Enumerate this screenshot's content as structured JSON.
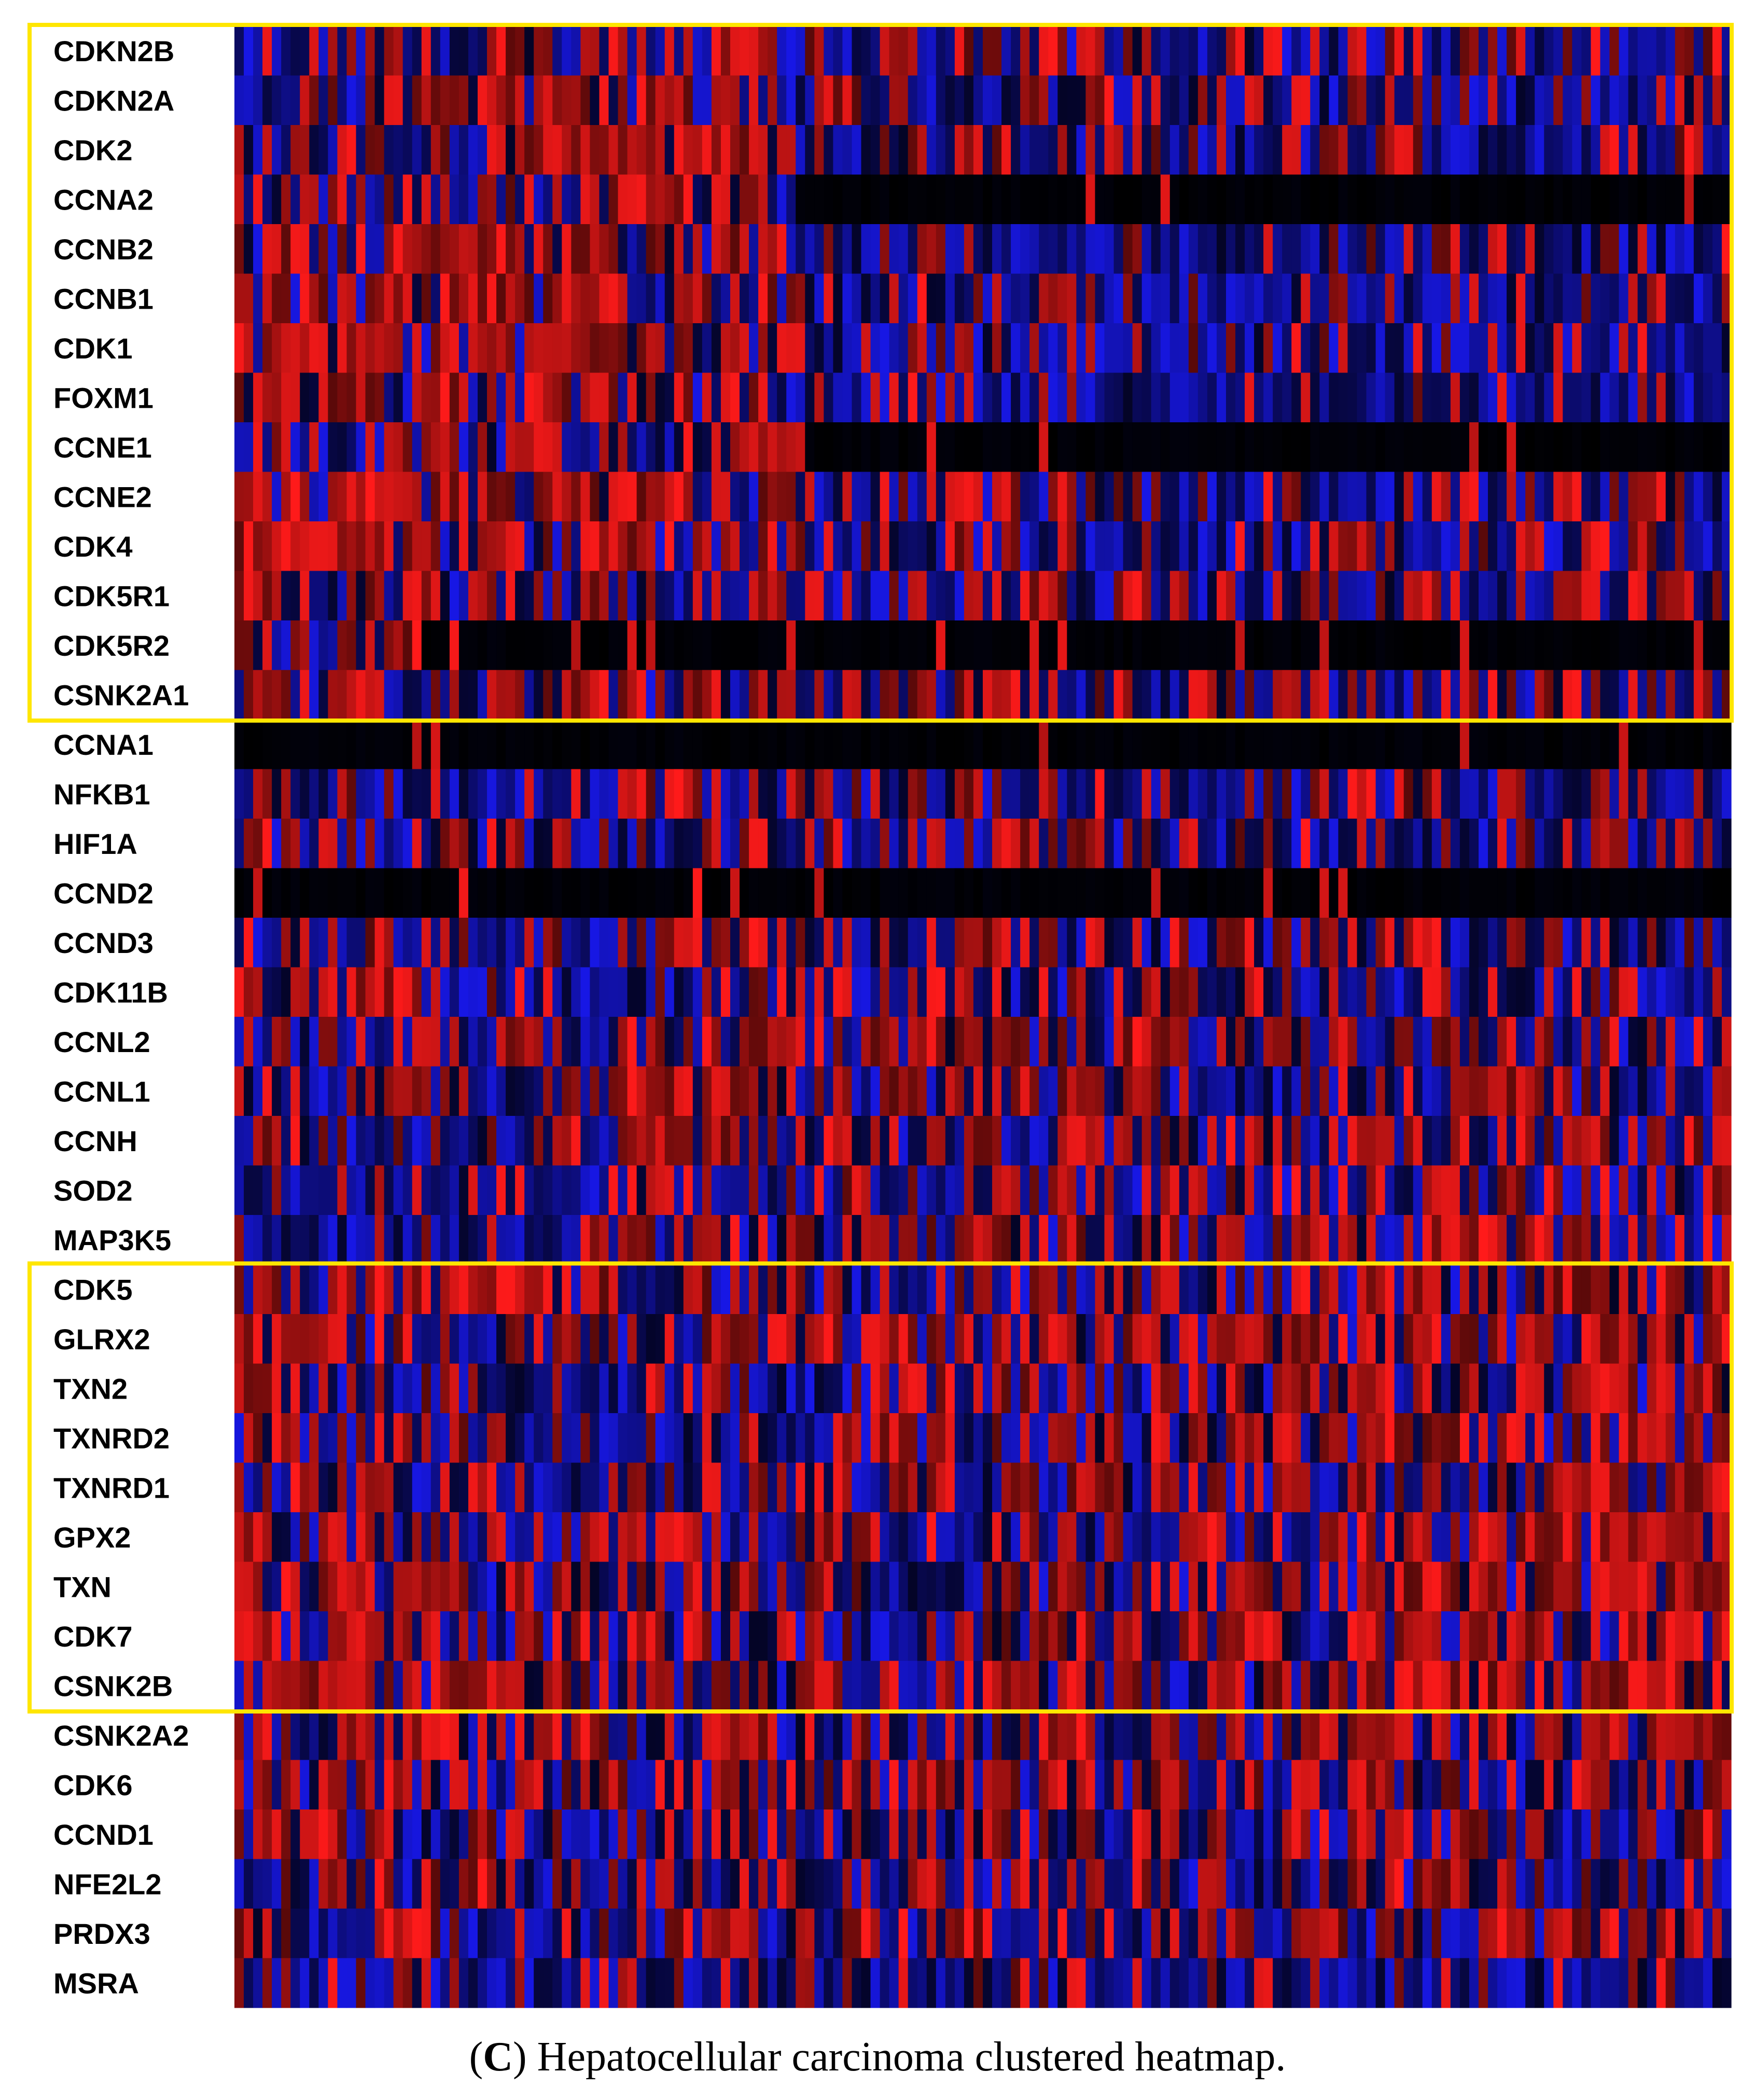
{
  "chart_data": {
    "type": "heatmap",
    "title": "",
    "caption_letter": "C",
    "caption_text": "Hepatocellular carcinoma clustered heatmap.",
    "caption_open": "(",
    "caption_close": ")",
    "row_labels": [
      "CDKN2B",
      "CDKN2A",
      "CDK2",
      "CCNA2",
      "CCNB2",
      "CCNB1",
      "CDK1",
      "FOXM1",
      "CCNE1",
      "CCNE2",
      "CDK4",
      "CDK5R1",
      "CDK5R2",
      "CSNK2A1",
      "CCNA1",
      "NFKB1",
      "HIF1A",
      "CCND2",
      "CCND3",
      "CDK11B",
      "CCNL2",
      "CCNL1",
      "CCNH",
      "SOD2",
      "MAP3K5",
      "CDK5",
      "GLRX2",
      "TXN2",
      "TXNRD2",
      "TXNRD1",
      "GPX2",
      "TXN",
      "CDK7",
      "CSNK2B",
      "CSNK2A2",
      "CDK6",
      "CCND1",
      "NFE2L2",
      "PRDX3",
      "MSRA"
    ],
    "highlighted_clusters": [
      {
        "first_row": "CDKN2B",
        "last_row": "CSNK2A1"
      },
      {
        "first_row": "CDK5",
        "last_row": "CSNK2B"
      }
    ],
    "row_profiles": [
      [
        0.45,
        0.5,
        0.5,
        0.45,
        0.4,
        0.4,
        0.35,
        0.35
      ],
      [
        0.55,
        0.75,
        0.55,
        0.4,
        0.4,
        0.35,
        0.35,
        0.4
      ],
      [
        0.65,
        0.75,
        0.75,
        0.4,
        0.35,
        0.3,
        0.3,
        0.3
      ],
      [
        0.55,
        0.55,
        0.6,
        0.0,
        0.0,
        0.0,
        0.0,
        0.0
      ],
      [
        0.8,
        0.85,
        0.75,
        0.3,
        0.25,
        0.2,
        0.25,
        0.25
      ],
      [
        0.8,
        0.8,
        0.65,
        0.3,
        0.25,
        0.2,
        0.25,
        0.25
      ],
      [
        0.85,
        0.8,
        0.65,
        0.3,
        0.2,
        0.2,
        0.2,
        0.2
      ],
      [
        0.8,
        0.75,
        0.65,
        0.3,
        0.25,
        0.2,
        0.25,
        0.25
      ],
      [
        0.4,
        0.55,
        0.5,
        0.0,
        0.0,
        0.0,
        0.0,
        0.0
      ],
      [
        0.7,
        0.75,
        0.75,
        0.3,
        0.25,
        0.25,
        0.25,
        0.25
      ],
      [
        0.8,
        0.65,
        0.55,
        0.35,
        0.3,
        0.3,
        0.3,
        0.35
      ],
      [
        0.65,
        0.6,
        0.55,
        0.4,
        0.35,
        0.35,
        0.35,
        0.35
      ],
      [
        0.55,
        0.0,
        0.0,
        0.0,
        0.0,
        0.0,
        0.0,
        0.0
      ],
      [
        0.75,
        0.75,
        0.65,
        0.45,
        0.45,
        0.4,
        0.35,
        0.35
      ],
      [
        0.0,
        0.0,
        0.0,
        0.0,
        0.0,
        0.0,
        0.0,
        0.0
      ],
      [
        0.3,
        0.3,
        0.5,
        0.5,
        0.4,
        0.35,
        0.3,
        0.3
      ],
      [
        0.35,
        0.4,
        0.55,
        0.5,
        0.4,
        0.35,
        0.4,
        0.4
      ],
      [
        0.0,
        0.0,
        0.0,
        0.0,
        0.0,
        0.0,
        0.0,
        0.0
      ],
      [
        0.3,
        0.4,
        0.55,
        0.45,
        0.45,
        0.45,
        0.5,
        0.4
      ],
      [
        0.45,
        0.25,
        0.5,
        0.4,
        0.35,
        0.3,
        0.4,
        0.35
      ],
      [
        0.4,
        0.45,
        0.55,
        0.45,
        0.45,
        0.45,
        0.55,
        0.5
      ],
      [
        0.35,
        0.4,
        0.6,
        0.55,
        0.45,
        0.45,
        0.55,
        0.45
      ],
      [
        0.4,
        0.35,
        0.55,
        0.5,
        0.55,
        0.55,
        0.65,
        0.6
      ],
      [
        0.25,
        0.25,
        0.4,
        0.4,
        0.45,
        0.45,
        0.5,
        0.45
      ],
      [
        0.25,
        0.3,
        0.55,
        0.5,
        0.55,
        0.5,
        0.55,
        0.45
      ],
      [
        0.75,
        0.6,
        0.4,
        0.4,
        0.5,
        0.55,
        0.7,
        0.75
      ],
      [
        0.55,
        0.5,
        0.55,
        0.45,
        0.5,
        0.65,
        0.8,
        0.85
      ],
      [
        0.5,
        0.35,
        0.4,
        0.4,
        0.45,
        0.55,
        0.65,
        0.75
      ],
      [
        0.4,
        0.3,
        0.4,
        0.4,
        0.45,
        0.55,
        0.7,
        0.75
      ],
      [
        0.55,
        0.4,
        0.5,
        0.45,
        0.55,
        0.6,
        0.65,
        0.7
      ],
      [
        0.45,
        0.35,
        0.45,
        0.45,
        0.45,
        0.55,
        0.65,
        0.75
      ],
      [
        0.65,
        0.4,
        0.45,
        0.4,
        0.5,
        0.65,
        0.7,
        0.75
      ],
      [
        0.7,
        0.55,
        0.5,
        0.45,
        0.5,
        0.6,
        0.7,
        0.75
      ],
      [
        0.8,
        0.6,
        0.45,
        0.45,
        0.6,
        0.6,
        0.75,
        0.8
      ],
      [
        0.6,
        0.55,
        0.5,
        0.45,
        0.55,
        0.55,
        0.55,
        0.55
      ],
      [
        0.65,
        0.55,
        0.45,
        0.45,
        0.55,
        0.5,
        0.5,
        0.45
      ],
      [
        0.55,
        0.45,
        0.45,
        0.4,
        0.55,
        0.5,
        0.5,
        0.45
      ],
      [
        0.45,
        0.4,
        0.4,
        0.45,
        0.5,
        0.5,
        0.45,
        0.35
      ],
      [
        0.3,
        0.35,
        0.45,
        0.45,
        0.5,
        0.5,
        0.5,
        0.45
      ],
      [
        0.2,
        0.25,
        0.35,
        0.35,
        0.35,
        0.3,
        0.3,
        0.3
      ]
    ],
    "columns_per_row": 160,
    "value_scale": {
      "low": "blue",
      "mid": "black",
      "high": "red"
    }
  },
  "colors": {
    "high": "#ff1a1a",
    "mid": "#000000",
    "low": "#1a1aff",
    "cluster_box": "#ffe600"
  }
}
